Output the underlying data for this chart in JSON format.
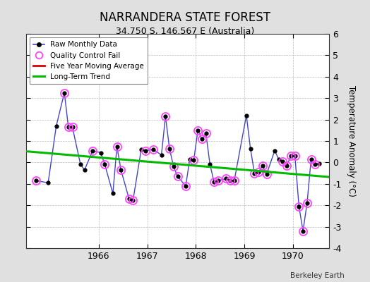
{
  "title": "NARRANDERA STATE FOREST",
  "subtitle": "34.750 S, 146.567 E (Australia)",
  "ylabel": "Temperature Anomaly (°C)",
  "credit": "Berkeley Earth",
  "ylim": [
    -4,
    6
  ],
  "yticks": [
    -4,
    -3,
    -2,
    -1,
    0,
    1,
    2,
    3,
    4,
    5,
    6
  ],
  "xlim": [
    1964.5,
    1970.75
  ],
  "bg_color": "#e0e0e0",
  "plot_bg": "#ffffff",
  "raw_data": [
    [
      1964.708,
      -0.85
    ],
    [
      1964.958,
      -0.95
    ],
    [
      1965.125,
      1.7
    ],
    [
      1965.292,
      3.25
    ],
    [
      1965.375,
      1.65
    ],
    [
      1965.458,
      1.65
    ],
    [
      1965.625,
      -0.1
    ],
    [
      1965.708,
      -0.35
    ],
    [
      1965.875,
      0.55
    ],
    [
      1966.042,
      0.45
    ],
    [
      1966.125,
      -0.1
    ],
    [
      1966.292,
      -1.45
    ],
    [
      1966.375,
      0.75
    ],
    [
      1966.458,
      -0.35
    ],
    [
      1966.625,
      -1.7
    ],
    [
      1966.708,
      -1.75
    ],
    [
      1966.875,
      0.6
    ],
    [
      1966.958,
      0.55
    ],
    [
      1967.125,
      0.6
    ],
    [
      1967.292,
      0.35
    ],
    [
      1967.375,
      2.15
    ],
    [
      1967.458,
      0.65
    ],
    [
      1967.542,
      -0.2
    ],
    [
      1967.625,
      -0.65
    ],
    [
      1967.792,
      -1.1
    ],
    [
      1967.875,
      0.15
    ],
    [
      1967.958,
      0.1
    ],
    [
      1968.042,
      1.5
    ],
    [
      1968.125,
      1.1
    ],
    [
      1968.208,
      1.35
    ],
    [
      1968.292,
      -0.1
    ],
    [
      1968.375,
      -0.9
    ],
    [
      1968.458,
      -0.85
    ],
    [
      1968.625,
      -0.75
    ],
    [
      1968.708,
      -0.85
    ],
    [
      1968.792,
      -0.85
    ],
    [
      1969.042,
      2.2
    ],
    [
      1969.125,
      0.65
    ],
    [
      1969.208,
      -0.5
    ],
    [
      1969.292,
      -0.45
    ],
    [
      1969.375,
      -0.15
    ],
    [
      1969.458,
      -0.55
    ],
    [
      1969.625,
      0.55
    ],
    [
      1969.708,
      0.15
    ],
    [
      1969.792,
      0.05
    ],
    [
      1969.875,
      -0.15
    ],
    [
      1969.958,
      0.3
    ],
    [
      1970.042,
      0.3
    ],
    [
      1970.125,
      -2.05
    ],
    [
      1970.208,
      -3.2
    ],
    [
      1970.292,
      -1.9
    ],
    [
      1970.375,
      0.15
    ],
    [
      1970.458,
      -0.1
    ],
    [
      1970.542,
      -0.05
    ]
  ],
  "qc_fail_x": [
    1964.708,
    1965.292,
    1965.375,
    1965.458,
    1965.875,
    1966.125,
    1966.375,
    1966.458,
    1966.625,
    1966.708,
    1966.958,
    1967.125,
    1967.375,
    1967.458,
    1967.542,
    1967.625,
    1967.792,
    1967.958,
    1968.042,
    1968.125,
    1968.208,
    1968.375,
    1968.458,
    1968.625,
    1968.708,
    1968.792,
    1969.208,
    1969.292,
    1969.375,
    1969.458,
    1969.792,
    1969.875,
    1969.958,
    1970.042,
    1970.125,
    1970.208,
    1970.292,
    1970.375,
    1970.458
  ],
  "qc_fail_y": [
    -0.85,
    3.25,
    1.65,
    1.65,
    0.55,
    -0.1,
    0.75,
    -0.35,
    -1.7,
    -1.75,
    0.55,
    0.6,
    2.15,
    0.65,
    -0.2,
    -0.65,
    -1.1,
    0.1,
    1.5,
    1.1,
    1.35,
    -0.9,
    -0.85,
    -0.75,
    -0.85,
    -0.85,
    -0.5,
    -0.45,
    -0.15,
    -0.55,
    0.05,
    -0.15,
    0.3,
    0.3,
    -2.05,
    -3.2,
    -1.9,
    0.15,
    -0.1
  ],
  "trend_x": [
    1964.5,
    1970.75
  ],
  "trend_y": [
    0.52,
    -0.68
  ],
  "line_color": "#4444cc",
  "dot_color": "#000000",
  "qc_color": "#ff44ff",
  "trend_color": "#00bb00",
  "moving_avg_color": "#dd0000"
}
